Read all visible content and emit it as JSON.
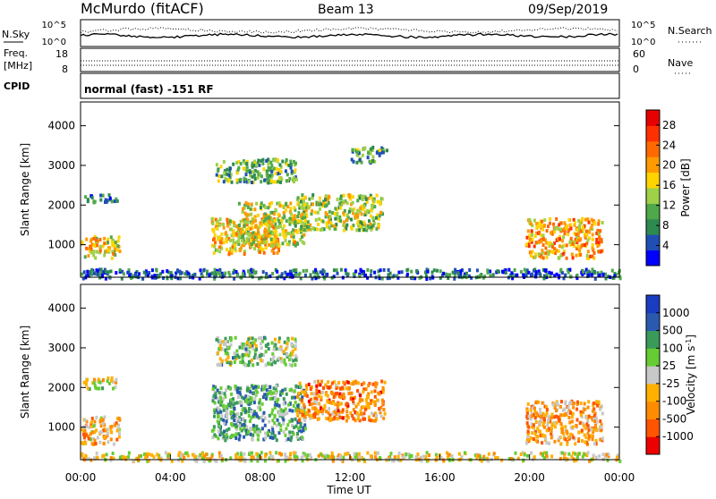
{
  "header": {
    "station": "McMurdo (fitACF)",
    "beam": "Beam 13",
    "date": "09/Sep/2019"
  },
  "side_labels": {
    "nsky": "N.Sky",
    "freq": "Freq.",
    "mhz": "[MHz]",
    "cpid": "CPID",
    "nsearch": "N.Search",
    "nave": "Nave"
  },
  "noise_panel": {
    "left_ticks": [
      "10^5",
      "10^0"
    ],
    "right_ticks": [
      "10^5",
      "10^0"
    ]
  },
  "freq_panel": {
    "left_ticks": [
      "18",
      "8"
    ],
    "right_ticks": [
      "60",
      "0"
    ]
  },
  "cpid_panel": {
    "text": "normal (fast) -151 RF"
  },
  "colors": {
    "power": [
      "#0000ff",
      "#1f4fb4",
      "#2d8a4f",
      "#4fa84a",
      "#9ed048",
      "#ffd400",
      "#ff9a00",
      "#ff6a00",
      "#ff3000",
      "#e60000"
    ],
    "velocity": [
      "#ee0000",
      "#ff5500",
      "#ff8c00",
      "#ffb000",
      "#c8c8c8",
      "#66cc33",
      "#3a9a5a",
      "#2a5ab0",
      "#1a3cc0"
    ]
  },
  "chart_data": [
    {
      "type": "heatmap",
      "name_label": "Power",
      "ylabel": "Slant Range [km]",
      "xlabel": "Time UT",
      "x_ticks": [
        "00:00",
        "04:00",
        "08:00",
        "12:00",
        "16:00",
        "20:00",
        "00:00"
      ],
      "xlim_hours": [
        0,
        24
      ],
      "y_ticks": [
        1000,
        2000,
        3000,
        4000
      ],
      "ylim_km": [
        180,
        4600
      ],
      "colorbar": {
        "label": "Power [dB]",
        "ticks": [
          4,
          8,
          12,
          16,
          20,
          24,
          28
        ],
        "range": [
          0,
          31
        ]
      },
      "regions": [
        {
          "t0": 0.0,
          "t1": 1.7,
          "r0": 700,
          "r1": 1250,
          "level": 0.55
        },
        {
          "t0": 0.1,
          "t1": 1.6,
          "r0": 2100,
          "r1": 2300,
          "level": 0.2
        },
        {
          "t0": 5.8,
          "t1": 8.8,
          "r0": 800,
          "r1": 1700,
          "level": 0.6
        },
        {
          "t0": 7.0,
          "t1": 10.0,
          "r0": 1000,
          "r1": 2100,
          "level": 0.5
        },
        {
          "t0": 9.6,
          "t1": 13.4,
          "r0": 1400,
          "r1": 2300,
          "level": 0.45
        },
        {
          "t0": 6.0,
          "t1": 9.6,
          "r0": 2600,
          "r1": 3200,
          "level": 0.35
        },
        {
          "t0": 12.0,
          "t1": 13.6,
          "r0": 3100,
          "r1": 3500,
          "level": 0.3
        },
        {
          "t0": 19.8,
          "t1": 23.2,
          "r0": 700,
          "r1": 1700,
          "level": 0.65
        },
        {
          "t0": 0.0,
          "t1": 24.0,
          "r0": 180,
          "r1": 420,
          "level": 0.15
        }
      ]
    },
    {
      "type": "heatmap",
      "name_label": "Velocity",
      "ylabel": "Slant Range [km]",
      "xlabel": "Time UT",
      "x_ticks": [
        "00:00",
        "04:00",
        "08:00",
        "12:00",
        "16:00",
        "20:00",
        "00:00"
      ],
      "xlim_hours": [
        0,
        24
      ],
      "y_ticks": [
        1000,
        2000,
        3000,
        4000
      ],
      "ylim_km": [
        180,
        4600
      ],
      "colorbar": {
        "label": "Velocity [m s^-1]",
        "ticks": [
          "1000",
          "500",
          "100",
          "25",
          "-25",
          "-100",
          "-500",
          "-1000"
        ]
      },
      "regions": [
        {
          "t0": 0.0,
          "t1": 1.7,
          "r0": 600,
          "r1": 1300,
          "level": 0.35
        },
        {
          "t0": 0.1,
          "t1": 1.6,
          "r0": 2000,
          "r1": 2300,
          "level": 0.5
        },
        {
          "t0": 5.8,
          "t1": 10.0,
          "r0": 700,
          "r1": 2100,
          "level": 0.7
        },
        {
          "t0": 9.6,
          "t1": 13.5,
          "r0": 1200,
          "r1": 2200,
          "level": 0.25
        },
        {
          "t0": 6.0,
          "t1": 9.6,
          "r0": 2600,
          "r1": 3300,
          "level": 0.6
        },
        {
          "t0": 19.8,
          "t1": 23.2,
          "r0": 600,
          "r1": 1700,
          "level": 0.3
        },
        {
          "t0": 0.0,
          "t1": 24.0,
          "r0": 180,
          "r1": 400,
          "level": 0.45
        }
      ]
    }
  ]
}
